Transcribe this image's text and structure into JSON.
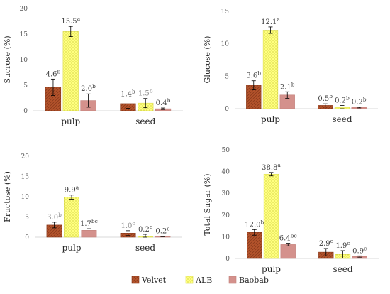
{
  "colors": {
    "velvet": "#b5542c",
    "alb": "#ffff80",
    "baobab": "#d4918c",
    "label_dark": "#404040",
    "label_gray": "#8c8c8c"
  },
  "legend": [
    "Velvet",
    "ALB",
    "Baobab"
  ],
  "chart_data": [
    {
      "type": "bar",
      "ylabel": "Sucrose (%)",
      "ylim": [
        0,
        20
      ],
      "yticks": [
        0,
        5,
        10,
        15,
        20
      ],
      "categories": [
        "pulp",
        "seed"
      ],
      "series": [
        {
          "name": "Velvet",
          "values": [
            4.6,
            1.4
          ],
          "errors": [
            1.6,
            0.9
          ]
        },
        {
          "name": "ALB",
          "values": [
            15.5,
            1.5
          ],
          "errors": [
            1.0,
            0.9
          ]
        },
        {
          "name": "Baobab",
          "values": [
            2.0,
            0.4
          ],
          "errors": [
            1.3,
            0.15
          ]
        }
      ],
      "labels": [
        [
          {
            "v": "4.6",
            "s": "b",
            "gray": false
          },
          {
            "v": "1.4",
            "s": "b",
            "gray": false
          }
        ],
        [
          {
            "v": "15.5",
            "s": "a",
            "gray": false
          },
          {
            "v": "1.5",
            "s": "b",
            "gray": true
          }
        ],
        [
          {
            "v": "2.0",
            "s": "b",
            "gray": false
          },
          {
            "v": "0.4",
            "s": "b",
            "gray": false
          }
        ]
      ]
    },
    {
      "type": "bar",
      "ylabel": "Glucose (%)",
      "ylim": [
        0,
        15
      ],
      "yticks": [
        0,
        5,
        10,
        15
      ],
      "categories": [
        "pulp",
        "seed"
      ],
      "series": [
        {
          "name": "Velvet",
          "values": [
            3.6,
            0.5
          ],
          "errors": [
            0.7,
            0.25
          ]
        },
        {
          "name": "ALB",
          "values": [
            12.1,
            0.2
          ],
          "errors": [
            0.5,
            0.3
          ]
        },
        {
          "name": "Baobab",
          "values": [
            2.1,
            0.2
          ],
          "errors": [
            0.5,
            0.08
          ]
        }
      ],
      "labels": [
        [
          {
            "v": "3.6",
            "s": "b",
            "gray": false
          },
          {
            "v": "0.5",
            "s": "b",
            "gray": false
          }
        ],
        [
          {
            "v": "12.1",
            "s": "a",
            "gray": false
          },
          {
            "v": "0.2",
            "s": "b",
            "gray": false
          }
        ],
        [
          {
            "v": "2.1",
            "s": "b",
            "gray": false
          },
          {
            "v": "0.2",
            "s": "b",
            "gray": false
          }
        ]
      ]
    },
    {
      "type": "bar",
      "ylabel": "Fructose (%)",
      "ylim": [
        0,
        20
      ],
      "yticks": [
        0,
        5,
        10,
        15,
        20
      ],
      "categories": [
        "pulp",
        "seed"
      ],
      "series": [
        {
          "name": "Velvet",
          "values": [
            3.0,
            1.0
          ],
          "errors": [
            0.7,
            0.6
          ]
        },
        {
          "name": "ALB",
          "values": [
            9.9,
            0.2
          ],
          "errors": [
            0.5,
            0.5
          ]
        },
        {
          "name": "Baobab",
          "values": [
            1.7,
            0.2
          ],
          "errors": [
            0.4,
            0.08
          ]
        }
      ],
      "labels": [
        [
          {
            "v": "3.0",
            "s": "b",
            "gray": true
          },
          {
            "v": "1.0",
            "s": "c",
            "gray": true
          }
        ],
        [
          {
            "v": "9.9",
            "s": "a",
            "gray": false
          },
          {
            "v": "0.2",
            "s": "c",
            "gray": false
          }
        ],
        [
          {
            "v": "1.7",
            "s": "bc",
            "gray": false
          },
          {
            "v": "0.2",
            "s": "c",
            "gray": false
          }
        ]
      ]
    },
    {
      "type": "bar",
      "ylabel": "Total Sugar (%)",
      "ylim": [
        0,
        50
      ],
      "yticks": [
        0,
        10,
        20,
        30,
        40,
        50
      ],
      "categories": [
        "pulp",
        "seed"
      ],
      "series": [
        {
          "name": "Velvet",
          "values": [
            12.0,
            2.9
          ],
          "errors": [
            1.3,
            1.7
          ]
        },
        {
          "name": "ALB",
          "values": [
            38.8,
            1.9
          ],
          "errors": [
            0.8,
            1.7
          ]
        },
        {
          "name": "Baobab",
          "values": [
            6.4,
            0.9
          ],
          "errors": [
            0.6,
            0.3
          ]
        }
      ],
      "labels": [
        [
          {
            "v": "12.0",
            "s": "b",
            "gray": false
          },
          {
            "v": "2.9",
            "s": "c",
            "gray": false
          }
        ],
        [
          {
            "v": "38.8",
            "s": "a",
            "gray": false
          },
          {
            "v": "1.9",
            "s": "c",
            "gray": false
          }
        ],
        [
          {
            "v": "6.4",
            "s": "bc",
            "gray": false
          },
          {
            "v": "0.9",
            "s": "c",
            "gray": false
          }
        ]
      ]
    }
  ]
}
